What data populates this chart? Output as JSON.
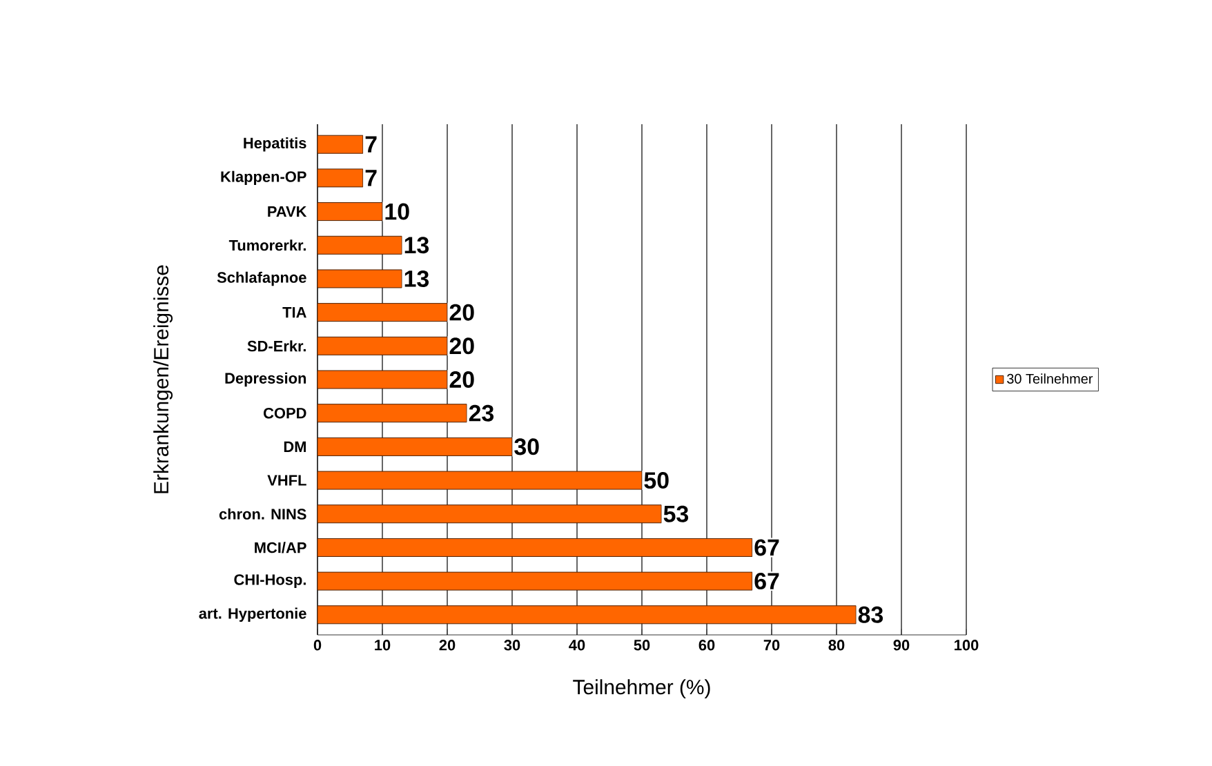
{
  "chart_data": {
    "type": "bar",
    "orientation": "horizontal",
    "xlabel": "Teilnehmer (%)",
    "ylabel": "Erkrankungen/Ereignisse",
    "categories": [
      "Hepatitis",
      "Klappen-OP",
      "PAVK",
      "Tumorerkr.",
      "Schlafapnoe",
      "TIA",
      "SD-Erkr.",
      "Depression",
      "COPD",
      "DM",
      "VHFL",
      "chron. NINS",
      "MCI/AP",
      "CHI-Hosp.",
      "art. Hypertonie"
    ],
    "series": [
      {
        "name": "30 Teilnehmer",
        "color": "#ff6600",
        "values": [
          7,
          7,
          10,
          13,
          13,
          20,
          20,
          20,
          23,
          30,
          50,
          53,
          67,
          67,
          83
        ]
      }
    ],
    "xlim": [
      0,
      100
    ],
    "xticks": [
      0,
      10,
      20,
      30,
      40,
      50,
      60,
      70,
      80,
      90,
      100
    ],
    "grid": "x",
    "legend": "right",
    "data_labels": true
  }
}
